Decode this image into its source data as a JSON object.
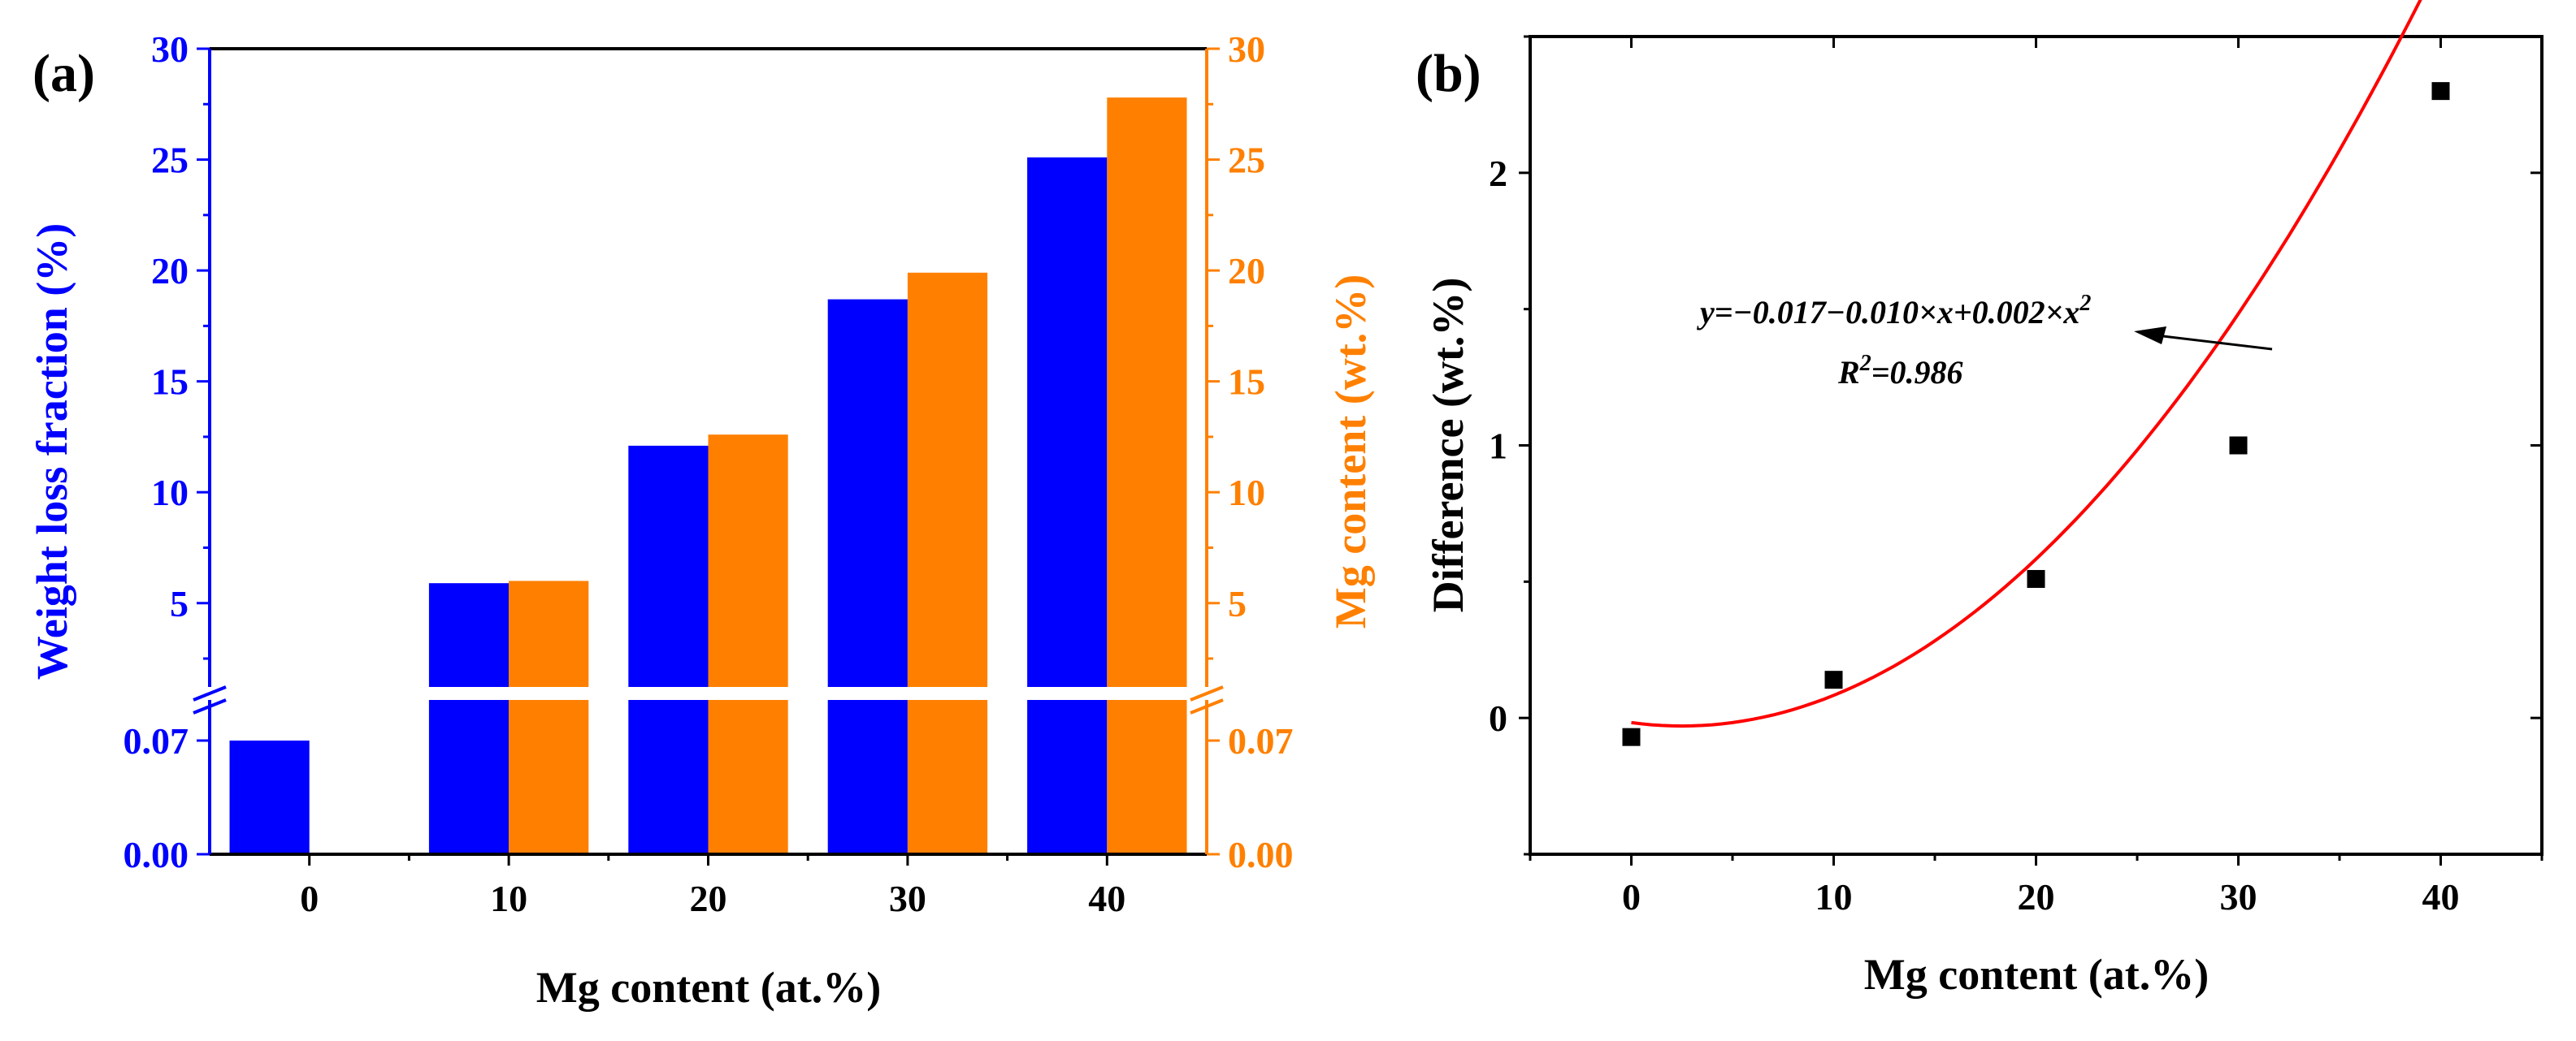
{
  "colors": {
    "blue": "#0000ff",
    "orange": "#ff8000",
    "black": "#000000",
    "red": "#ff0000"
  },
  "chart_data": [
    {
      "type": "bar",
      "panel_label": "(a)",
      "xlabel": "Mg content (at.%)",
      "categories": [
        "0",
        "10",
        "20",
        "30",
        "40"
      ],
      "x_values": [
        0,
        10,
        20,
        30,
        40
      ],
      "series": [
        {
          "name": "Weight loss fraction (%)",
          "axis": "left",
          "color": "#0000ff",
          "values": [
            0.07,
            5.9,
            12.1,
            18.7,
            25.1
          ]
        },
        {
          "name": "Mg content (wt.%)",
          "axis": "right",
          "color": "#ff8000",
          "values": [
            0,
            6.0,
            12.6,
            19.9,
            27.8
          ]
        }
      ],
      "ylabel_left": "Weight loss fraction (%)",
      "ylabel_right": "Mg content (wt.%)",
      "y_axis_break": true,
      "ylim_lower_segment": [
        0,
        0.1
      ],
      "ylim_upper_segment": [
        1,
        30
      ],
      "yticks_lower": [
        "0.00",
        "0.07"
      ],
      "yticks_upper": [
        "5",
        "10",
        "15",
        "20",
        "25",
        "30"
      ]
    },
    {
      "type": "scatter",
      "panel_label": "(b)",
      "xlabel": "Mg content (at.%)",
      "ylabel": "Difference (wt.%)",
      "xlim": [
        -5,
        45
      ],
      "ylim": [
        -0.5,
        2.5
      ],
      "xticks": [
        "0",
        "10",
        "20",
        "30",
        "40"
      ],
      "yticks": [
        "0",
        "1",
        "2"
      ],
      "points": {
        "x": [
          0,
          10,
          20,
          30,
          40
        ],
        "y": [
          -0.07,
          0.14,
          0.51,
          1.0,
          2.3
        ]
      },
      "fit": {
        "a": -0.017,
        "b": -0.01,
        "c": 0.002,
        "color": "#ff0000"
      },
      "fit_equation_lead": "y=−0.017−0.010×x+0.002×x",
      "fit_equation_exp": "2",
      "r2_lead": "R",
      "r2_exp": "2",
      "r2_tail": "=0.986"
    }
  ]
}
